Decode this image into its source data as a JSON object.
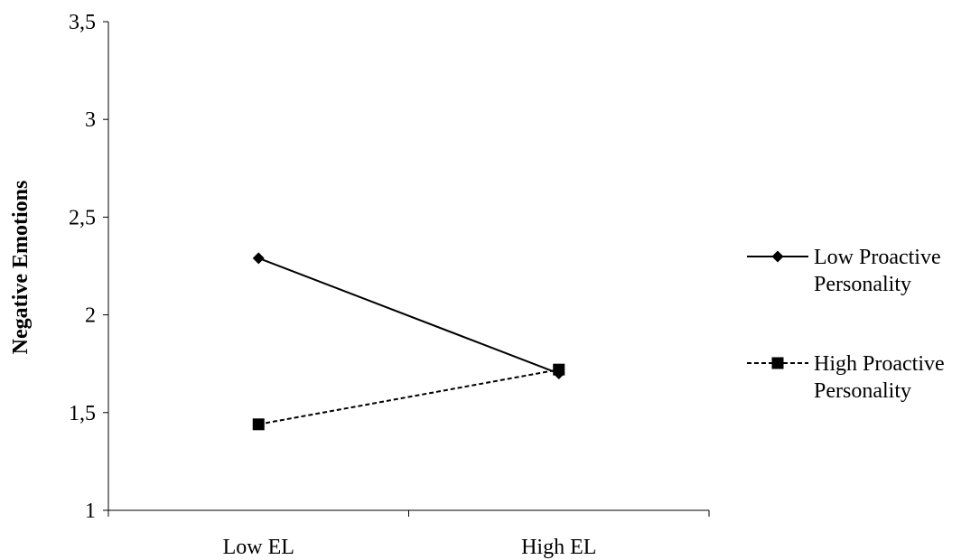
{
  "chart_data": {
    "type": "line",
    "title": "",
    "xlabel": "",
    "ylabel": "Negative Emotions",
    "categories": [
      "Low EL",
      "High EL"
    ],
    "ylim": [
      1,
      3.5
    ],
    "yticks": [
      {
        "value": 1,
        "label": "1"
      },
      {
        "value": 1.5,
        "label": "1,5"
      },
      {
        "value": 2,
        "label": "2"
      },
      {
        "value": 2.5,
        "label": "2,5"
      },
      {
        "value": 3,
        "label": "3"
      },
      {
        "value": 3.5,
        "label": "3,5"
      }
    ],
    "grid": false,
    "legend_position": "right",
    "series": [
      {
        "name_lines": [
          "Low Proactive",
          "Personality"
        ],
        "marker": "diamond",
        "line_style": "solid",
        "color": "#000000",
        "values": [
          2.29,
          1.7
        ]
      },
      {
        "name_lines": [
          "High Proactive",
          "Personality"
        ],
        "marker": "square",
        "line_style": "dashed",
        "color": "#000000",
        "values": [
          1.44,
          1.72
        ]
      }
    ]
  }
}
